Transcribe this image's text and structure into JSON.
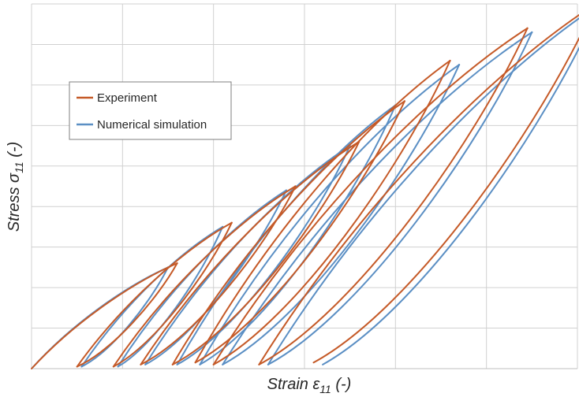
{
  "chart_data": {
    "type": "line",
    "title": "",
    "xlabel": "Strain ε11 (-)",
    "ylabel": "Stress σ11 (-)",
    "xlabel_parts": {
      "pre": "Strain ε",
      "sub": "11",
      "post": " (-)"
    },
    "ylabel_parts": {
      "pre": "Stress σ",
      "sub": "11",
      "post": " (-)"
    },
    "x_ticks_shown": false,
    "y_ticks_shown": false,
    "xlim": [
      0,
      6
    ],
    "ylim": [
      0,
      9
    ],
    "grid": true,
    "legend_position": "upper-left",
    "series": [
      {
        "name": "Experiment",
        "color": "#C55A28",
        "style": "hysteresis-loops",
        "loops": [
          {
            "peak": [
              1.6,
              2.6
            ],
            "end": [
              0.5,
              0.05
            ]
          },
          {
            "peak": [
              2.2,
              3.6
            ],
            "end": [
              0.9,
              0.05
            ]
          },
          {
            "peak": [
              2.9,
              4.5
            ],
            "end": [
              1.2,
              0.1
            ]
          },
          {
            "peak": [
              3.6,
              5.6
            ],
            "end": [
              1.55,
              0.1
            ]
          },
          {
            "peak": [
              4.1,
              6.6
            ],
            "end": [
              1.8,
              0.15
            ]
          },
          {
            "peak": [
              4.6,
              7.6
            ],
            "end": [
              2.0,
              0.1
            ]
          },
          {
            "peak": [
              5.45,
              8.4
            ],
            "end": [
              2.5,
              0.1
            ]
          },
          {
            "peak": [
              6.2,
              9.0
            ],
            "end": [
              3.1,
              0.15
            ]
          }
        ]
      },
      {
        "name": "Numerical simulation",
        "color": "#5B8FC4",
        "style": "hysteresis-loops",
        "loops": [
          {
            "peak": [
              1.5,
              2.5
            ],
            "end": [
              0.55,
              0.05
            ]
          },
          {
            "peak": [
              2.1,
              3.5
            ],
            "end": [
              0.95,
              0.05
            ]
          },
          {
            "peak": [
              2.8,
              4.4
            ],
            "end": [
              1.25,
              0.1
            ]
          },
          {
            "peak": [
              3.5,
              5.5
            ],
            "end": [
              1.6,
              0.1
            ]
          },
          {
            "peak": [
              4.0,
              6.5
            ],
            "end": [
              1.85,
              0.1
            ]
          },
          {
            "peak": [
              4.7,
              7.5
            ],
            "end": [
              2.1,
              0.1
            ]
          },
          {
            "peak": [
              5.5,
              8.3
            ],
            "end": [
              2.6,
              0.1
            ]
          },
          {
            "peak": [
              6.25,
              9.0
            ],
            "end": [
              3.2,
              0.1
            ]
          }
        ]
      }
    ]
  }
}
